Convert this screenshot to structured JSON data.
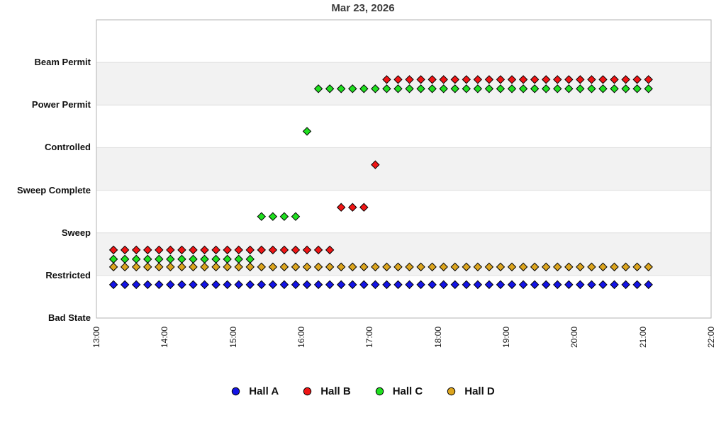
{
  "title": "Mar 23, 2026",
  "chart_data": {
    "type": "scatter",
    "title": "Mar 23, 2026",
    "x_axis": {
      "ticks": [
        "13:00",
        "14:00",
        "15:00",
        "16:00",
        "17:00",
        "18:00",
        "19:00",
        "20:00",
        "21:00",
        "22:00"
      ],
      "range": [
        "13:00",
        "22:00"
      ]
    },
    "y_axis": {
      "categories_bottom_to_top": [
        "Bad State",
        "Restricted",
        "Sweep",
        "Sweep Complete",
        "Controlled",
        "Power Permit",
        "Beam Permit"
      ]
    },
    "sampling": {
      "interval_minutes": 10,
      "first_sample": "13:15",
      "last_sample": "21:05"
    },
    "series": [
      {
        "name": "Hall A",
        "color": "#1414E6",
        "marker": "diamond",
        "segments": [
          {
            "state": "Restricted",
            "from": "13:15",
            "to": "21:05"
          }
        ]
      },
      {
        "name": "Hall B",
        "color": "#EF1515",
        "marker": "diamond",
        "segments": [
          {
            "state": "Restricted",
            "from": "13:15",
            "to": "16:25"
          },
          {
            "state": "Sweep",
            "from": "16:35",
            "to": "16:55"
          },
          {
            "state": "Sweep Complete",
            "from": "17:05",
            "to": "17:05"
          },
          {
            "state": "Power Permit",
            "from": "17:15",
            "to": "21:05"
          }
        ]
      },
      {
        "name": "Hall C",
        "color": "#1FDF1F",
        "marker": "diamond",
        "segments": [
          {
            "state": "Restricted",
            "from": "13:15",
            "to": "15:15"
          },
          {
            "state": "Sweep",
            "from": "15:25",
            "to": "15:55"
          },
          {
            "state": "Controlled",
            "from": "16:05",
            "to": "16:05"
          },
          {
            "state": "Power Permit",
            "from": "16:15",
            "to": "21:05"
          }
        ]
      },
      {
        "name": "Hall D",
        "color": "#DCA51F",
        "marker": "diamond",
        "segments": [
          {
            "state": "Restricted",
            "from": "13:15",
            "to": "21:05"
          }
        ]
      }
    ],
    "legend": {
      "position": "bottom",
      "items": [
        {
          "label": "Hall A",
          "color": "#1414E6"
        },
        {
          "label": "Hall B",
          "color": "#EF1515"
        },
        {
          "label": "Hall C",
          "color": "#1FDF1F"
        },
        {
          "label": "Hall D",
          "color": "#DCA51F"
        }
      ]
    },
    "style_colors": {
      "band_fill": "#F2F2F2",
      "grid_line": "#DDDDDD",
      "plot_border": "#B3B3B3",
      "marker_outline": "#000000"
    }
  }
}
